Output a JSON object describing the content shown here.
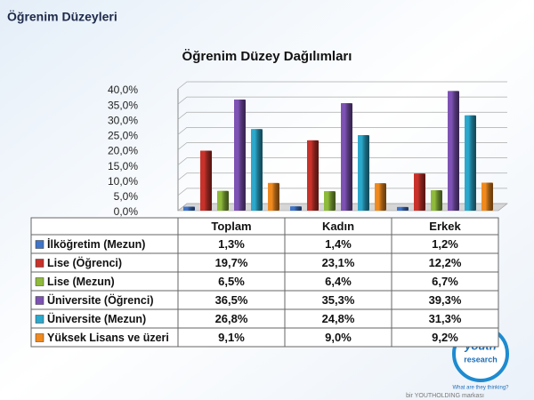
{
  "header": {
    "title": "Öğrenim Düzeyleri"
  },
  "chart_data": {
    "type": "bar3d",
    "title": "Öğrenim Düzey Dağılımları",
    "categories": [
      "Toplam",
      "Kadın",
      "Erkek"
    ],
    "series": [
      {
        "name": "İlköğretim (Mezun)",
        "color": "#3f74c8",
        "values": [
          1.3,
          1.4,
          1.2
        ],
        "value_labels": [
          "1,3%",
          "1,4%",
          "1,2%"
        ]
      },
      {
        "name": "Lise (Öğrenci)",
        "color": "#c8322b",
        "values": [
          19.7,
          23.1,
          12.2
        ],
        "value_labels": [
          "19,7%",
          "23,1%",
          "12,2%"
        ]
      },
      {
        "name": "Lise (Mezun)",
        "color": "#8fbb3c",
        "values": [
          6.5,
          6.4,
          6.7
        ],
        "value_labels": [
          "6,5%",
          "6,4%",
          "6,7%"
        ]
      },
      {
        "name": "Üniversite (Öğrenci)",
        "color": "#7d52b4",
        "values": [
          36.5,
          35.3,
          39.3
        ],
        "value_labels": [
          "36,5%",
          "35,3%",
          "39,3%"
        ]
      },
      {
        "name": "Üniversite (Mezun)",
        "color": "#2ba8cc",
        "values": [
          26.8,
          24.8,
          31.3
        ],
        "value_labels": [
          "26,8%",
          "24,8%",
          "31,3%"
        ]
      },
      {
        "name": "Yüksek Lisans ve üzeri",
        "color": "#f08a1f",
        "values": [
          9.1,
          9.0,
          9.2
        ],
        "value_labels": [
          "9,1%",
          "9,0%",
          "9,2%"
        ]
      }
    ],
    "ylim": [
      0,
      40
    ],
    "yticks": [
      {
        "value": 0,
        "label": "0,0%"
      },
      {
        "value": 5,
        "label": "5,0%"
      },
      {
        "value": 10,
        "label": "10,0%"
      },
      {
        "value": 15,
        "label": "15,0%"
      },
      {
        "value": 20,
        "label": "20,0%"
      },
      {
        "value": 25,
        "label": "25,0%"
      },
      {
        "value": 30,
        "label": "30,0%"
      },
      {
        "value": 35,
        "label": "35,0%"
      },
      {
        "value": 40,
        "label": "40,0%"
      }
    ],
    "grid": true
  },
  "branding": {
    "logo_top": "youth",
    "logo_bottom": "research",
    "tagline": "What are they thinking?",
    "footer": "bir YOUTHOLDING markası"
  }
}
